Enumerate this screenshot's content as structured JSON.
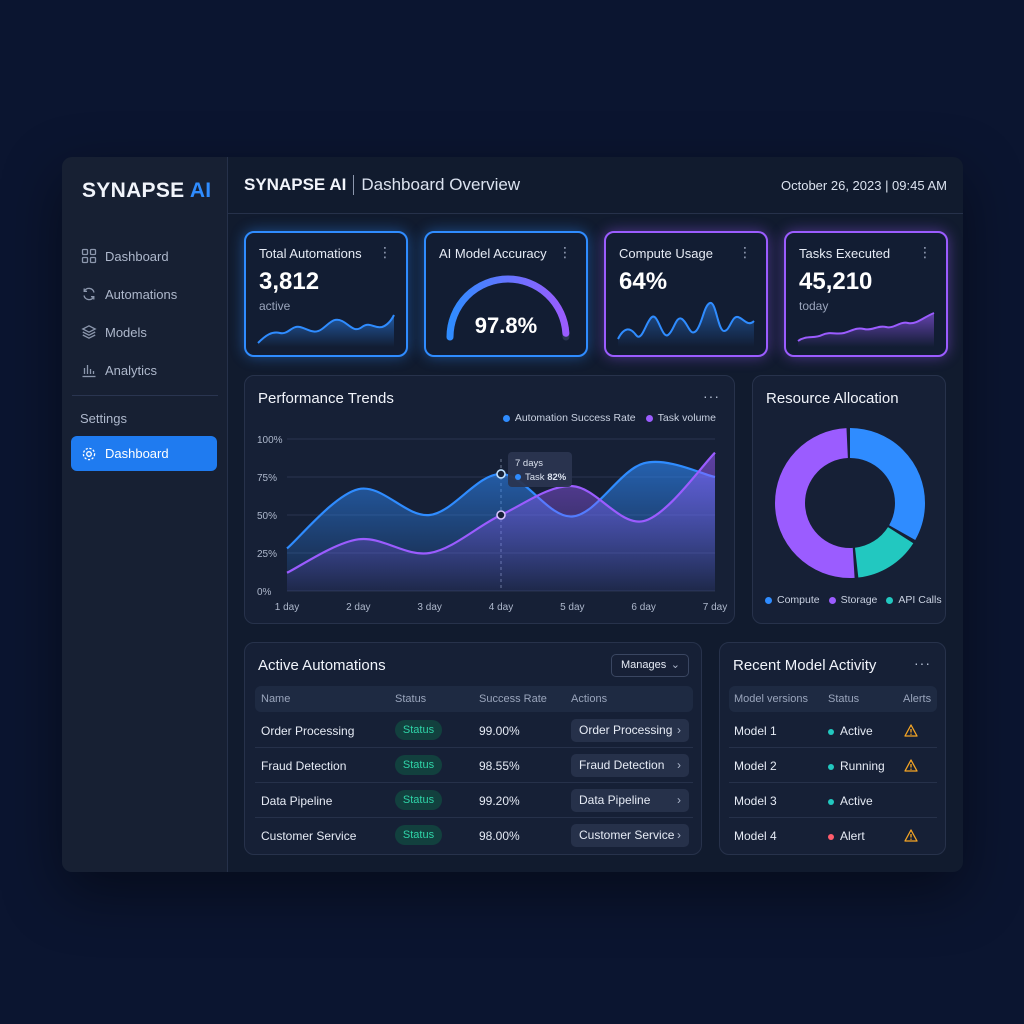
{
  "brand": {
    "name": "SYNAPSE",
    "suffix": "AI"
  },
  "sidebar": {
    "items": [
      {
        "label": "Dashboard",
        "icon": "grid-icon"
      },
      {
        "label": "Automations",
        "icon": "refresh-icon"
      },
      {
        "label": "Models",
        "icon": "layers-icon"
      },
      {
        "label": "Analytics",
        "icon": "bar-chart-icon"
      }
    ],
    "section": "Settings",
    "active": {
      "label": "Dashboard",
      "icon": "gear-icon"
    }
  },
  "header": {
    "title": "SYNAPSE AI",
    "subtitle": "Dashboard Overview",
    "datetime": "October 26, 2023 | 09:45 AM"
  },
  "kpis": [
    {
      "title": "Total Automations",
      "value": "3,812",
      "sub": "active"
    },
    {
      "title": "AI Model Accuracy",
      "value": "97.8%",
      "gauge_fraction": 0.978
    },
    {
      "title": "Compute Usage",
      "value": "64%"
    },
    {
      "title": "Tasks Executed",
      "value": "45,210",
      "sub": "today"
    }
  ],
  "colors": {
    "blue": "#2f8cff",
    "purple": "#9b5cff",
    "teal": "#22c8c0",
    "green": "#2fd4a8",
    "red": "#ff5c6c",
    "amber": "#f5a524"
  },
  "performance": {
    "title": "Performance Trends",
    "tooltip": {
      "title": "7 days",
      "label": "Task",
      "value": "82%"
    }
  },
  "resources": {
    "title": "Resource Allocation"
  },
  "chart_data": [
    {
      "type": "area",
      "title": "Performance Trends",
      "categories": [
        "1 day",
        "2 day",
        "3 day",
        "4 day",
        "5 day",
        "6 day",
        "7 day"
      ],
      "y_ticks": [
        "100%",
        "75%",
        "50%",
        "25%",
        "0%"
      ],
      "ylim": [
        0,
        100
      ],
      "legend": "top-right",
      "series": [
        {
          "name": "Automation Success Rate",
          "values": [
            28,
            67,
            50,
            77,
            49,
            84,
            75
          ]
        },
        {
          "name": "Task volume",
          "values": [
            12,
            34,
            25,
            50,
            69,
            46,
            91
          ]
        }
      ]
    },
    {
      "type": "pie",
      "title": "Resource Allocation",
      "legend": "bottom",
      "labels": [
        "Compute",
        "Storage",
        "API Calls"
      ],
      "values": [
        34,
        51,
        15
      ]
    }
  ],
  "automations": {
    "title": "Active Automations",
    "manage_label": "Manages",
    "columns": [
      "Name",
      "Status",
      "Success Rate",
      "Actions"
    ],
    "rows": [
      {
        "name": "Order Processing",
        "status": "Status",
        "rate": "99.00%",
        "action": "Order Processing"
      },
      {
        "name": "Fraud Detection",
        "status": "Status",
        "rate": "98.55%",
        "action": "Fraud Detection"
      },
      {
        "name": "Data Pipeline",
        "status": "Status",
        "rate": "99.20%",
        "action": "Data Pipeline"
      },
      {
        "name": "Customer Service",
        "status": "Status",
        "rate": "98.00%",
        "action": "Customer Service"
      }
    ]
  },
  "model_activity": {
    "title": "Recent Model Activity",
    "columns": [
      "Model versions",
      "Status",
      "Alerts"
    ],
    "rows": [
      {
        "model": "Model 1",
        "status": "Active",
        "status_color": "#22c8c0",
        "alert": true
      },
      {
        "model": "Model 2",
        "status": "Running",
        "status_color": "#22c8c0",
        "alert": true
      },
      {
        "model": "Model 3",
        "status": "Active",
        "status_color": "#22c8c0",
        "alert": false
      },
      {
        "model": "Model 4",
        "status": "Alert",
        "status_color": "#ff5c6c",
        "alert": true
      }
    ]
  }
}
